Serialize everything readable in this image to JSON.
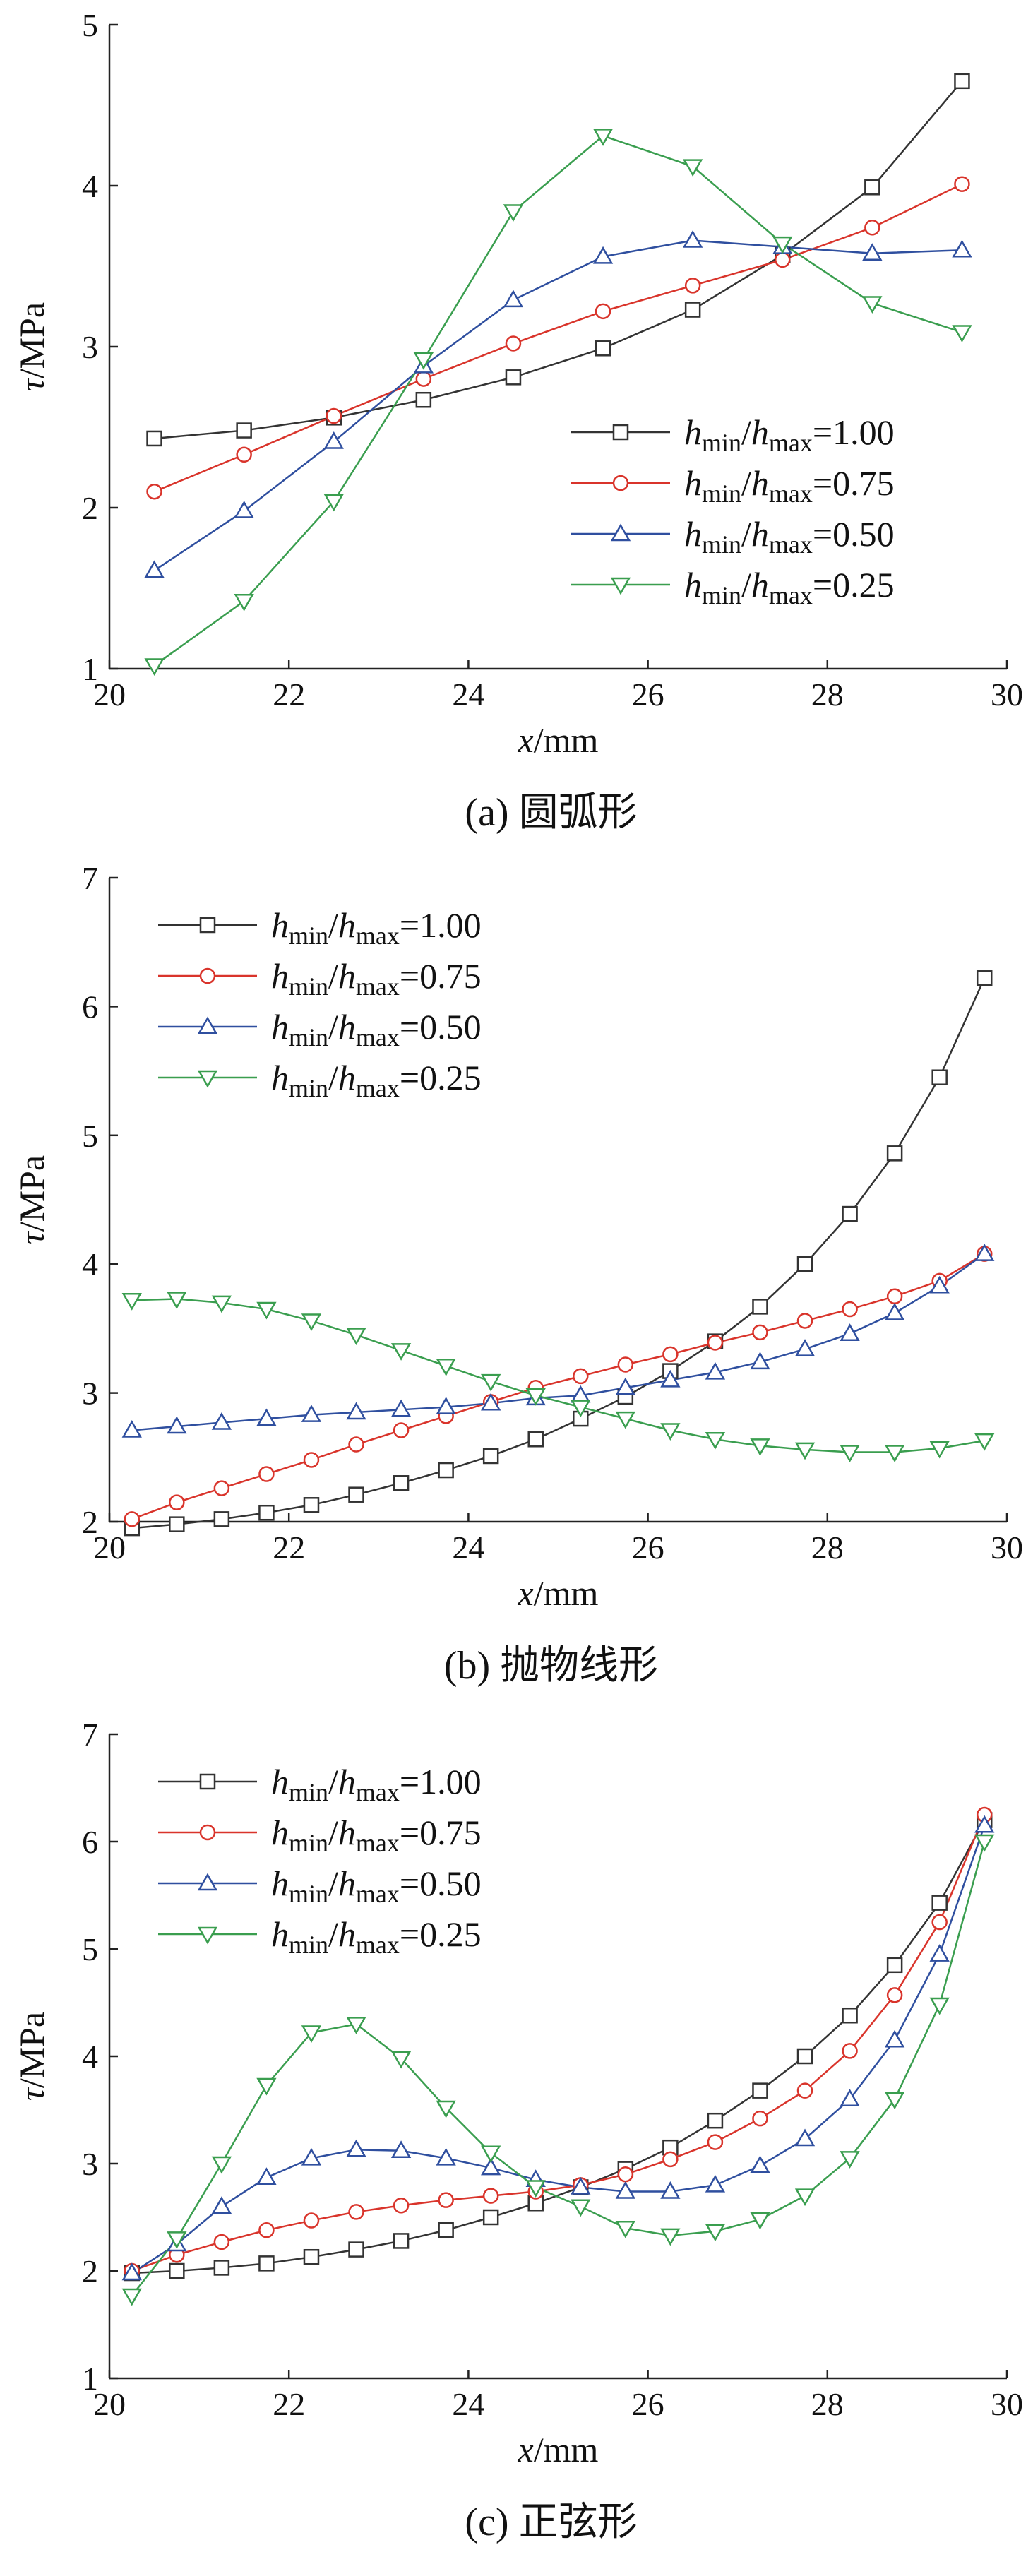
{
  "chart_data": [
    {
      "type": "line",
      "caption": "(a)  圆弧形",
      "xlabel": "x/mm",
      "ylabel": "τ/MPa",
      "x": [
        20.5,
        21.5,
        22.5,
        23.5,
        24.5,
        25.5,
        26.5,
        27.5,
        28.5,
        29.5
      ],
      "xlim": [
        20,
        30
      ],
      "xticks": [
        20,
        22,
        24,
        26,
        28,
        30
      ],
      "ylim": [
        1,
        5
      ],
      "yticks": [
        1,
        2,
        3,
        4,
        5
      ],
      "legend": "center right",
      "series": [
        {
          "name": "hmin/hmax=1.00",
          "color": "#333333",
          "marker": "square",
          "values": [
            2.43,
            2.48,
            2.56,
            2.67,
            2.81,
            2.99,
            3.23,
            3.57,
            3.99,
            4.65
          ]
        },
        {
          "name": "hmin/hmax=0.75",
          "color": "#d9342b",
          "marker": "circle",
          "values": [
            2.1,
            2.33,
            2.57,
            2.8,
            3.02,
            3.22,
            3.38,
            3.54,
            3.74,
            4.01
          ]
        },
        {
          "name": "hmin/hmax=0.50",
          "color": "#2f4f9f",
          "marker": "triangle-up",
          "values": [
            1.61,
            1.98,
            2.41,
            2.88,
            3.29,
            3.56,
            3.66,
            3.62,
            3.58,
            3.6
          ]
        },
        {
          "name": "hmin/hmax=0.25",
          "color": "#3a9e4f",
          "marker": "triangle-down",
          "values": [
            1.02,
            1.42,
            2.04,
            2.92,
            3.84,
            4.31,
            4.12,
            3.64,
            3.27,
            3.09
          ]
        }
      ]
    },
    {
      "type": "line",
      "caption": "(b)  抛物线形",
      "xlabel": "x/mm",
      "ylabel": "τ/MPa",
      "x": [
        20.25,
        20.75,
        21.25,
        21.75,
        22.25,
        22.75,
        23.25,
        23.75,
        24.25,
        24.75,
        25.25,
        25.75,
        26.25,
        26.75,
        27.25,
        27.75,
        28.25,
        28.75,
        29.25,
        29.75
      ],
      "xlim": [
        20,
        30
      ],
      "xticks": [
        20,
        22,
        24,
        26,
        28,
        30
      ],
      "ylim": [
        2,
        7
      ],
      "yticks": [
        2,
        3,
        4,
        5,
        6,
        7
      ],
      "legend": "upper left",
      "series": [
        {
          "name": "hmin/hmax=1.00",
          "color": "#333333",
          "marker": "square",
          "values": [
            1.95,
            1.98,
            2.02,
            2.07,
            2.13,
            2.21,
            2.3,
            2.4,
            2.51,
            2.64,
            2.8,
            2.97,
            3.17,
            3.4,
            3.67,
            4.0,
            4.39,
            4.86,
            5.45,
            6.22
          ]
        },
        {
          "name": "hmin/hmax=0.75",
          "color": "#d9342b",
          "marker": "circle",
          "values": [
            2.02,
            2.15,
            2.26,
            2.37,
            2.48,
            2.6,
            2.71,
            2.82,
            2.93,
            3.04,
            3.13,
            3.22,
            3.3,
            3.39,
            3.47,
            3.56,
            3.65,
            3.75,
            3.87,
            4.08
          ]
        },
        {
          "name": "hmin/hmax=0.50",
          "color": "#2f4f9f",
          "marker": "triangle-up",
          "values": [
            2.71,
            2.74,
            2.77,
            2.8,
            2.83,
            2.85,
            2.87,
            2.89,
            2.92,
            2.96,
            2.98,
            3.04,
            3.1,
            3.16,
            3.24,
            3.34,
            3.46,
            3.62,
            3.83,
            4.08
          ]
        },
        {
          "name": "hmin/hmax=0.25",
          "color": "#3a9e4f",
          "marker": "triangle-down",
          "values": [
            3.72,
            3.73,
            3.7,
            3.65,
            3.56,
            3.45,
            3.33,
            3.21,
            3.09,
            2.98,
            2.89,
            2.8,
            2.71,
            2.64,
            2.59,
            2.56,
            2.54,
            2.54,
            2.57,
            2.63
          ]
        }
      ]
    },
    {
      "type": "line",
      "caption": "(c)  正弦形",
      "xlabel": "x/mm",
      "ylabel": "τ/MPa",
      "x": [
        20.25,
        20.75,
        21.25,
        21.75,
        22.25,
        22.75,
        23.25,
        23.75,
        24.25,
        24.75,
        25.25,
        25.75,
        26.25,
        26.75,
        27.25,
        27.75,
        28.25,
        28.75,
        29.25,
        29.75
      ],
      "xlim": [
        20,
        30
      ],
      "xticks": [
        20,
        22,
        24,
        26,
        28,
        30
      ],
      "ylim": [
        1,
        7
      ],
      "yticks": [
        1,
        2,
        3,
        4,
        5,
        6,
        7
      ],
      "legend": "upper left",
      "series": [
        {
          "name": "hmin/hmax=1.00",
          "color": "#333333",
          "marker": "square",
          "values": [
            1.98,
            2.0,
            2.03,
            2.07,
            2.13,
            2.2,
            2.28,
            2.38,
            2.5,
            2.63,
            2.78,
            2.95,
            3.15,
            3.4,
            3.68,
            4.0,
            4.38,
            4.85,
            5.43,
            6.2
          ]
        },
        {
          "name": "hmin/hmax=0.75",
          "color": "#d9342b",
          "marker": "circle",
          "values": [
            2.0,
            2.15,
            2.27,
            2.38,
            2.47,
            2.55,
            2.61,
            2.66,
            2.7,
            2.74,
            2.8,
            2.9,
            3.04,
            3.2,
            3.42,
            3.68,
            4.05,
            4.57,
            5.25,
            6.25
          ]
        },
        {
          "name": "hmin/hmax=0.50",
          "color": "#2f4f9f",
          "marker": "triangle-up",
          "values": [
            1.98,
            2.25,
            2.6,
            2.87,
            3.05,
            3.13,
            3.12,
            3.05,
            2.96,
            2.85,
            2.78,
            2.74,
            2.74,
            2.8,
            2.98,
            3.23,
            3.6,
            4.15,
            4.95,
            6.15
          ]
        },
        {
          "name": "hmin/hmax=0.25",
          "color": "#3a9e4f",
          "marker": "triangle-down",
          "values": [
            1.77,
            2.3,
            3.0,
            3.73,
            4.22,
            4.3,
            3.98,
            3.52,
            3.1,
            2.78,
            2.6,
            2.4,
            2.33,
            2.37,
            2.48,
            2.7,
            3.05,
            3.6,
            4.48,
            6.0
          ]
        }
      ]
    }
  ]
}
